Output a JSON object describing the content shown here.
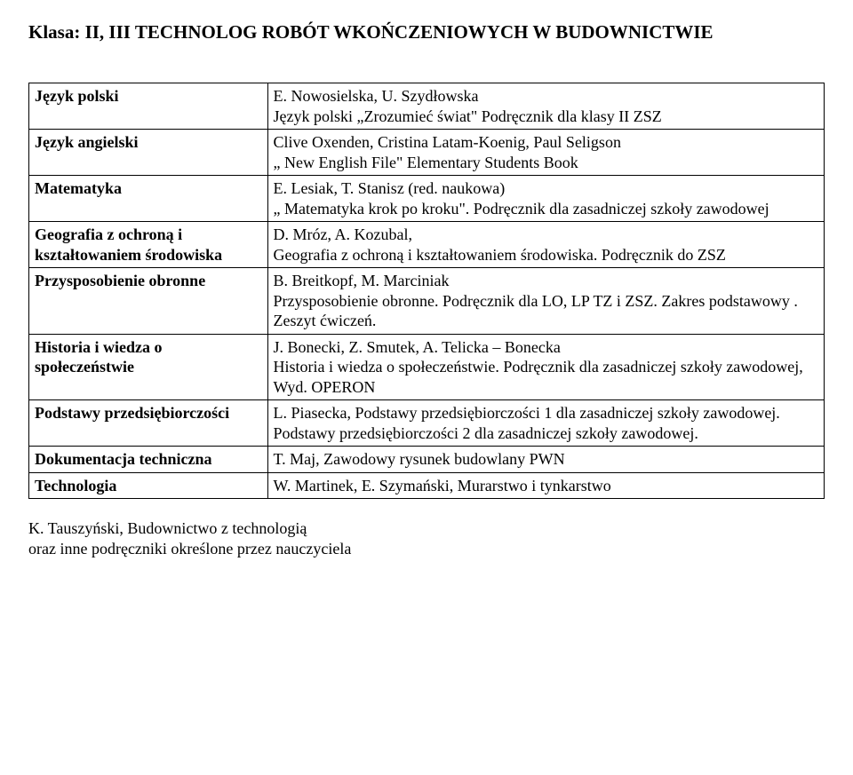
{
  "header": "Klasa:  II, III  TECHNOLOG  ROBÓT  WKOŃCZENIOWYCH W BUDOWNICTWIE",
  "rows": [
    {
      "left": "Język polski",
      "right": "E. Nowosielska, U. Szydłowska\nJęzyk polski „Zrozumieć świat\" Podręcznik dla klasy II ZSZ"
    },
    {
      "left": "Język angielski",
      "right": "Clive Oxenden, Cristina Latam-Koenig, Paul Seligson\n„ New English File\" Elementary Students Book"
    },
    {
      "left": "Matematyka",
      "right": "E. Lesiak, T. Stanisz (red. naukowa)\n„ Matematyka krok po kroku\". Podręcznik dla zasadniczej szkoły zawodowej"
    },
    {
      "left": "Geografia z ochroną i kształtowaniem środowiska",
      "right": "D. Mróz, A. Kozubal,\nGeografia z ochroną i kształtowaniem środowiska. Podręcznik do ZSZ"
    },
    {
      "left": "Przysposobienie obronne",
      "right": "B. Breitkopf, M. Marciniak\nPrzysposobienie obronne. Podręcznik dla LO, LP TZ  i ZSZ. Zakres podstawowy .\n Zeszyt ćwiczeń."
    },
    {
      "left": "Historia i wiedza o społeczeństwie",
      "right": "J. Bonecki, Z. Smutek, A. Telicka – Bonecka\nHistoria i wiedza o społeczeństwie. Podręcznik dla zasadniczej szkoły zawodowej, Wyd. OPERON"
    },
    {
      "left": "Podstawy przedsiębiorczości",
      "right": "L. Piasecka, Podstawy przedsiębiorczości 1 dla zasadniczej szkoły zawodowej.\nPodstawy przedsiębiorczości 2 dla zasadniczej szkoły zawodowej."
    },
    {
      "left": "Dokumentacja techniczna",
      "right": "T. Maj, Zawodowy rysunek budowlany PWN"
    },
    {
      "left": "Technologia",
      "right": "W. Martinek, E. Szymański, Murarstwo i tynkarstwo"
    }
  ],
  "extra": "K. Tauszyński, Budownictwo z technologią\noraz inne  podręczniki określone przez nauczyciela"
}
